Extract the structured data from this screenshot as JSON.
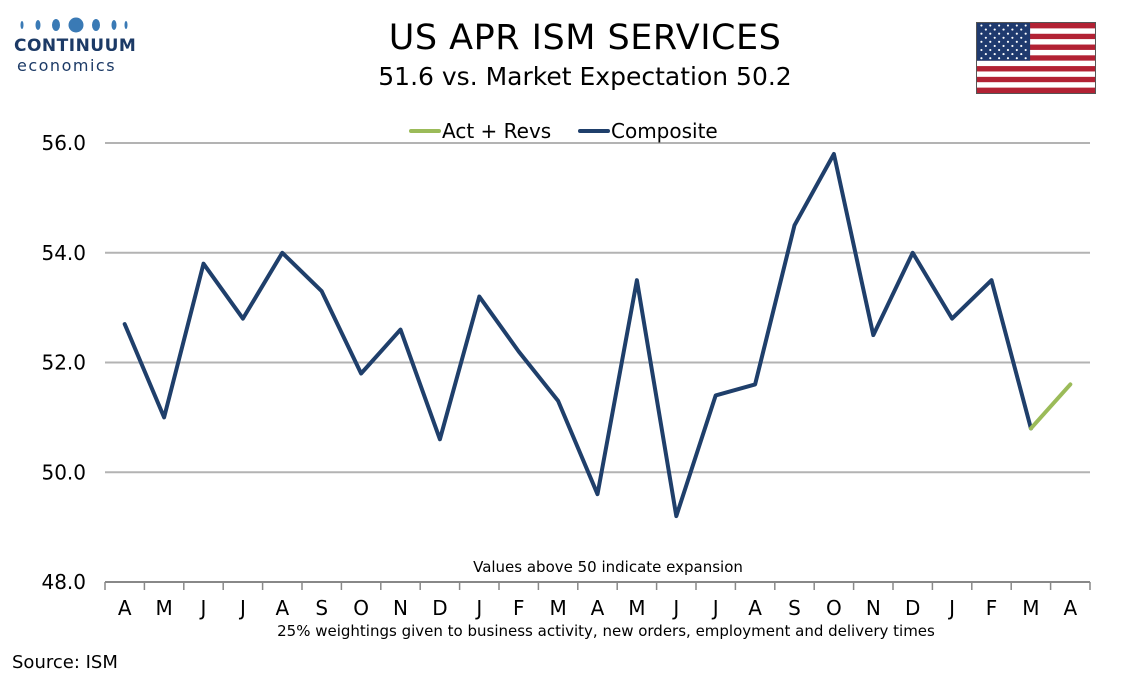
{
  "header": {
    "title": "US APR ISM SERVICES",
    "subtitle": "51.6 vs. Market Expectation 50.2"
  },
  "logo": {
    "word": "CONTINUUM",
    "sub": "economics",
    "color": "#1c3a66"
  },
  "flag": {
    "icon": "us-flag-icon"
  },
  "source": "Source: ISM",
  "chart_data": {
    "type": "line",
    "categories": [
      "A",
      "M",
      "J",
      "J",
      "A",
      "S",
      "O",
      "N",
      "D",
      "J",
      "F",
      "M",
      "A",
      "M",
      "J",
      "J",
      "A",
      "S",
      "O",
      "N",
      "D",
      "J",
      "F",
      "M",
      "A"
    ],
    "ylim": [
      48,
      56
    ],
    "yticks": [
      48,
      50,
      52,
      54,
      56
    ],
    "ytick_labels": [
      "48.0",
      "50.0",
      "52.0",
      "54.0",
      "56.0"
    ],
    "grid": true,
    "legend_position": "top-center",
    "series": [
      {
        "name": "Act + Revs",
        "color": "#9bbb59",
        "values": [
          null,
          null,
          null,
          null,
          null,
          null,
          null,
          null,
          null,
          null,
          null,
          null,
          null,
          null,
          null,
          null,
          null,
          null,
          null,
          null,
          null,
          null,
          null,
          50.8,
          51.6
        ]
      },
      {
        "name": "Composite",
        "color": "#1f3f6b",
        "values": [
          52.7,
          51.0,
          53.8,
          52.8,
          54.0,
          53.3,
          51.8,
          52.6,
          50.6,
          53.2,
          52.2,
          51.3,
          49.6,
          53.5,
          49.2,
          51.4,
          51.6,
          54.5,
          55.8,
          52.5,
          54.0,
          52.8,
          53.5,
          50.8,
          null
        ]
      }
    ],
    "annotations": [
      "Values above 50 indicate expansion",
      "25% weightings given to business activity, new orders, employment and delivery times"
    ]
  }
}
